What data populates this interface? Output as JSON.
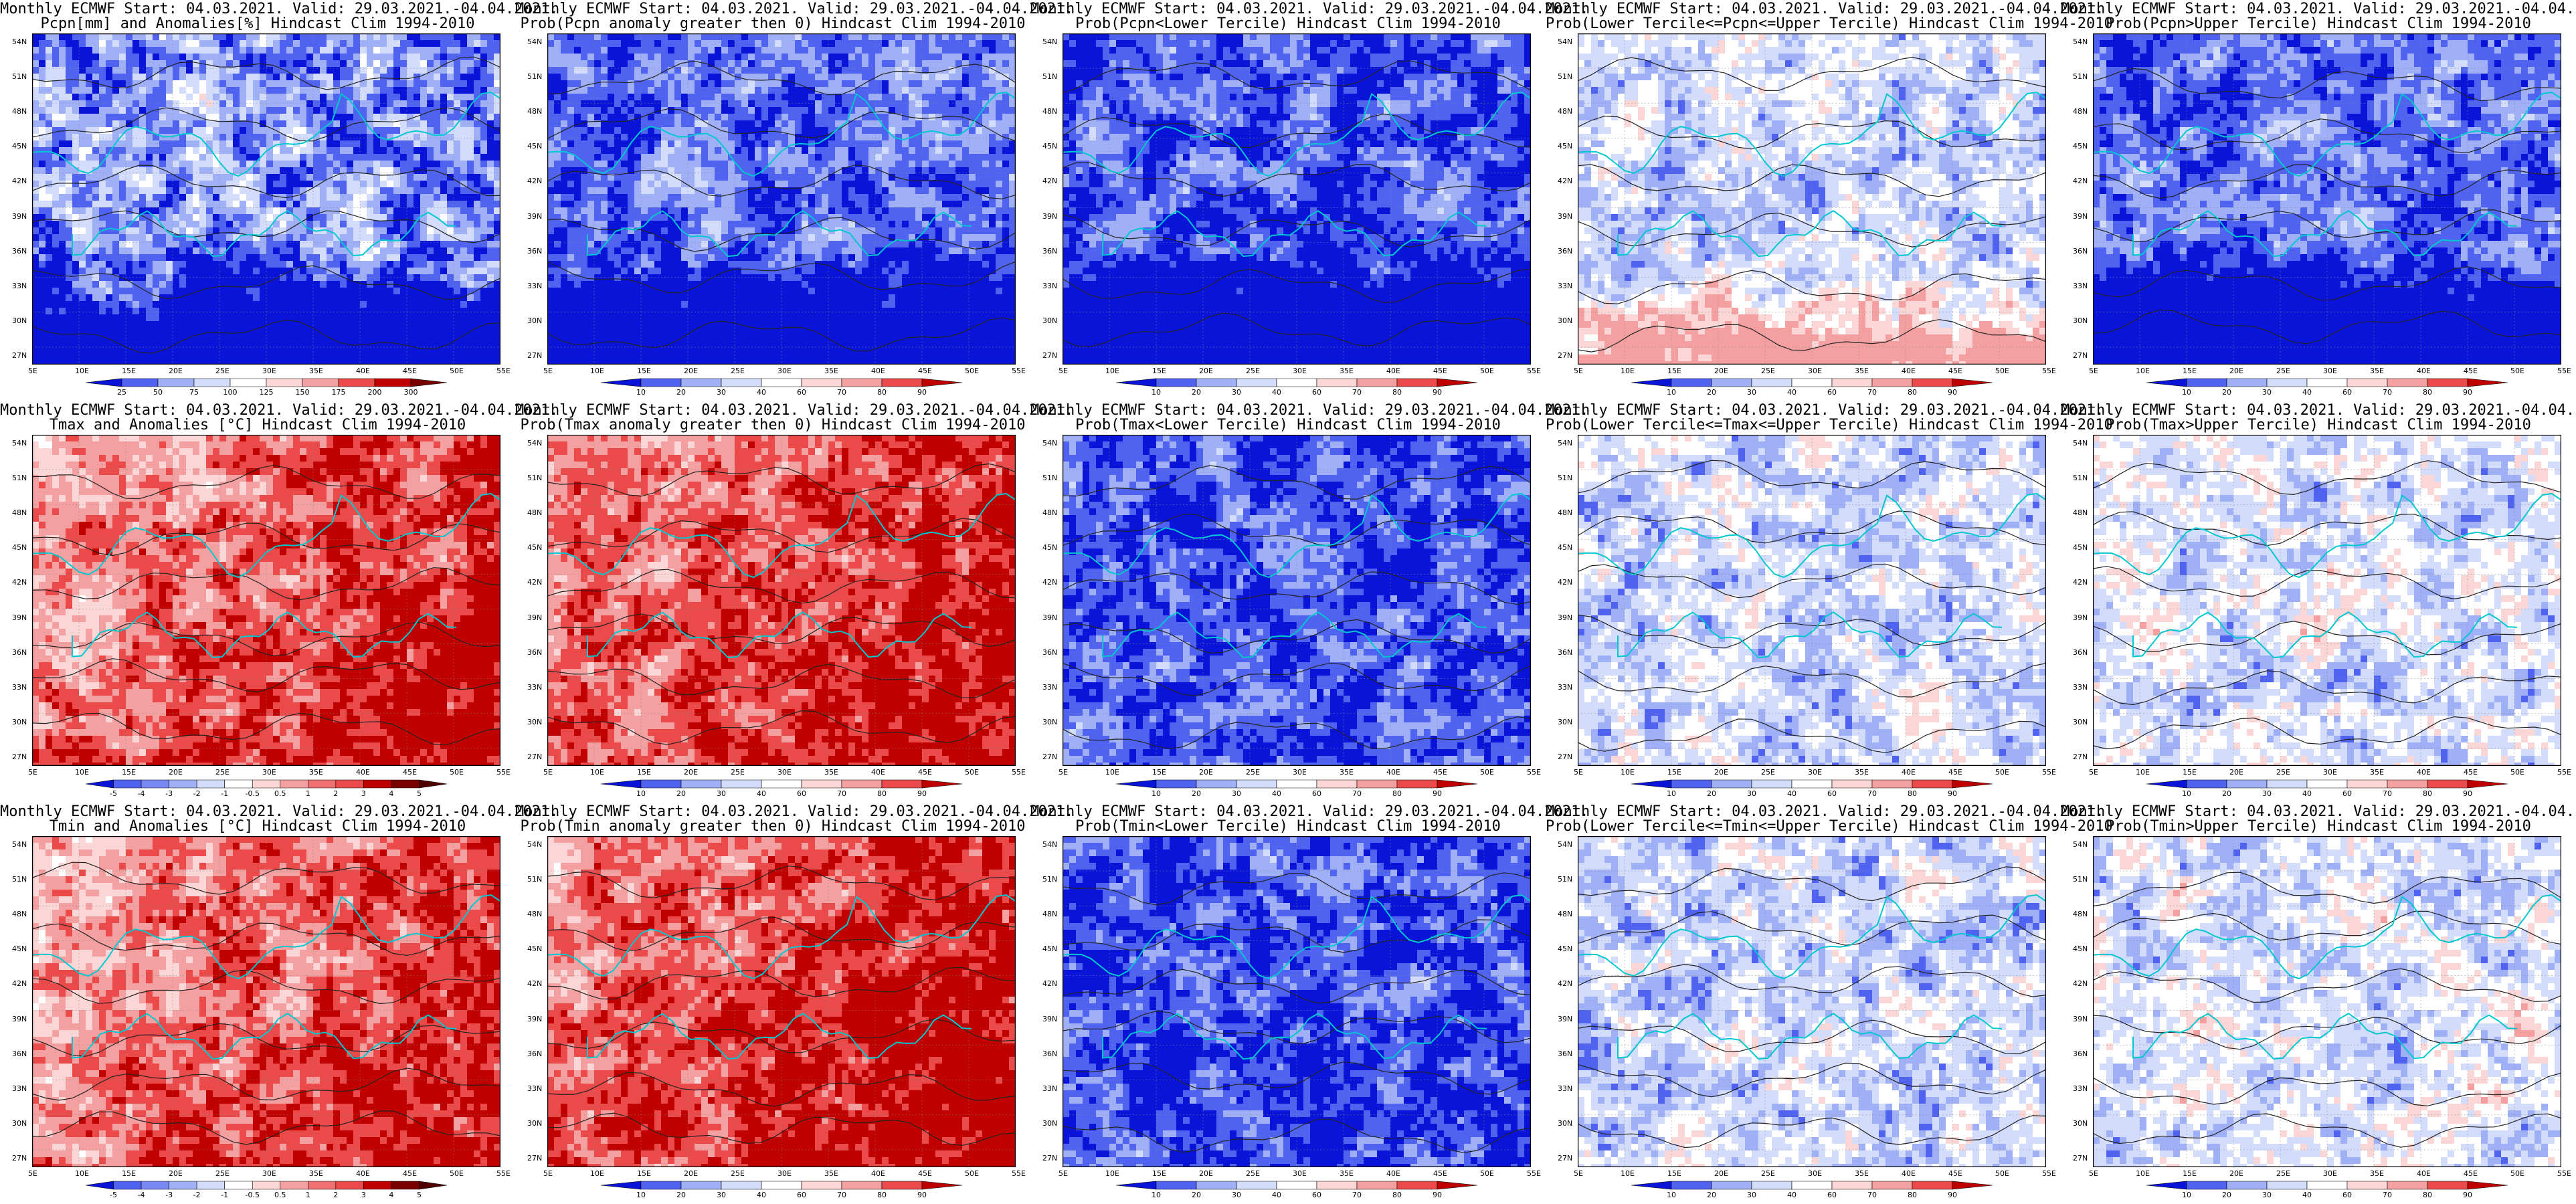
{
  "title_line1": "Monthly ECMWF Start: 04.03.2021. Valid: 29.03.2021.-04.04.2021.",
  "lat_labels": [
    "54N",
    "51N",
    "48N",
    "45N",
    "42N",
    "39N",
    "36N",
    "33N",
    "30N",
    "27N"
  ],
  "lon_labels": [
    "5E",
    "10E",
    "15E",
    "20E",
    "25E",
    "30E",
    "35E",
    "40E",
    "45E",
    "50E",
    "55E"
  ],
  "colorbars": {
    "pcpn": [
      "25",
      "50",
      "75",
      "100",
      "125",
      "150",
      "175",
      "200",
      "300"
    ],
    "prob": [
      "10",
      "20",
      "30",
      "40",
      "60",
      "70",
      "80",
      "90"
    ],
    "temp": [
      "-5",
      "-4",
      "-3",
      "-2",
      "-1",
      "-0.5",
      "0.5",
      "1",
      "2",
      "3",
      "4",
      "5"
    ]
  },
  "colors": {
    "blue_dark": "#0a14d8",
    "blue_mid": "#4f63f0",
    "blue_light": "#9fb0f6",
    "blue_pale": "#d4dcfb",
    "white": "#ffffff",
    "red_pale": "#fbd6d6",
    "red_light": "#f4a0a0",
    "red_mid": "#ea4a4a",
    "red_dark": "#c00000",
    "coast": "#00c8d0",
    "contour": "#222222"
  },
  "panels": [
    {
      "line2": "Pcpn[mm] and Anomalies[%] Hindcast Clim 1994-2010",
      "scheme": "pcpn",
      "cbar": "pcpn",
      "bias": -0.3
    },
    {
      "line2": "Prob(Pcpn anomaly greater then 0) Hindcast Clim 1994-2010",
      "scheme": "cold",
      "cbar": "prob",
      "bias": -0.35
    },
    {
      "line2": "Prob(Pcpn<Lower Tercile) Hindcast Clim 1994-2010",
      "scheme": "cold",
      "cbar": "prob",
      "bias": -0.45
    },
    {
      "line2": "Prob(Lower Tercile<=Pcpn<=Upper Tercile) Hindcast Clim 1994-2010",
      "scheme": "mix",
      "cbar": "prob",
      "bias": -0.2
    },
    {
      "line2": "Prob(Pcpn>Upper Tercile) Hindcast Clim 1994-2010",
      "scheme": "cold",
      "cbar": "prob",
      "bias": -0.3
    },
    {
      "line2": "Tmax and Anomalies [°C] Hindcast Clim 1994-2010",
      "scheme": "warm",
      "cbar": "temp",
      "bias": 0.25
    },
    {
      "line2": "Prob(Tmax anomaly greater then 0) Hindcast Clim 1994-2010",
      "scheme": "warm",
      "cbar": "prob",
      "bias": 0.35
    },
    {
      "line2": "Prob(Tmax<Lower Tercile) Hindcast Clim 1994-2010",
      "scheme": "cold",
      "cbar": "prob",
      "bias": -0.5
    },
    {
      "line2": "Prob(Lower Tercile<=Tmax<=Upper Tercile) Hindcast Clim 1994-2010",
      "scheme": "mix",
      "cbar": "prob",
      "bias": -0.15
    },
    {
      "line2": "Prob(Tmax>Upper Tercile) Hindcast Clim 1994-2010",
      "scheme": "mix",
      "cbar": "prob",
      "bias": -0.05
    },
    {
      "line2": "Tmin and Anomalies [°C] Hindcast Clim 1994-2010",
      "scheme": "warm",
      "cbar": "temp",
      "bias": 0.15
    },
    {
      "line2": "Prob(Tmin anomaly greater then 0) Hindcast Clim 1994-2010",
      "scheme": "warm",
      "cbar": "prob",
      "bias": 0.4
    },
    {
      "line2": "Prob(Tmin<Lower Tercile) Hindcast Clim 1994-2010",
      "scheme": "cold",
      "cbar": "prob",
      "bias": -0.5
    },
    {
      "line2": "Prob(Lower Tercile<=Tmin<=Upper Tercile) Hindcast Clim 1994-2010",
      "scheme": "mix",
      "cbar": "prob",
      "bias": -0.2
    },
    {
      "line2": "Prob(Tmin>Upper Tercile) Hindcast Clim 1994-2010",
      "scheme": "mix",
      "cbar": "prob",
      "bias": -0.05
    }
  ]
}
